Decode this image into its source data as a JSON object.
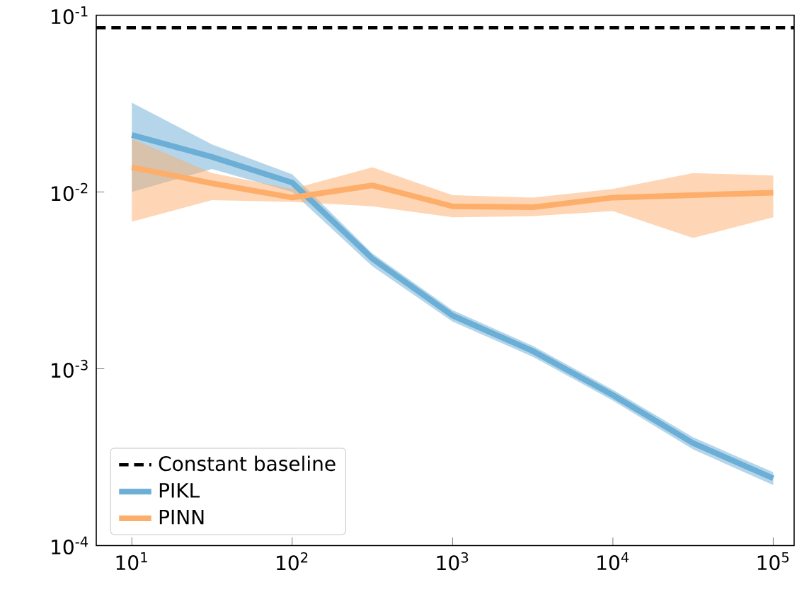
{
  "chart_data": {
    "type": "line",
    "log": "xy",
    "x": [
      10,
      31.6,
      100,
      316,
      1000,
      3162,
      10000,
      31623,
      100000
    ],
    "series": [
      {
        "name": "PIKL",
        "color": "#6baed6",
        "values": [
          0.021,
          0.0158,
          0.0113,
          0.0042,
          0.002,
          0.00126,
          0.00071,
          0.00038,
          0.00024
        ],
        "lower": [
          0.01,
          0.0135,
          0.01,
          0.0038,
          0.00185,
          0.00117,
          0.00066,
          0.00035,
          0.00022
        ],
        "upper": [
          0.032,
          0.0186,
          0.0126,
          0.0045,
          0.00215,
          0.00135,
          0.00076,
          0.00041,
          0.00026
        ]
      },
      {
        "name": "PINN",
        "color": "#fdae6b",
        "values": [
          0.0138,
          0.0112,
          0.0093,
          0.0109,
          0.0083,
          0.0082,
          0.0093,
          0.0096,
          0.0099
        ],
        "lower": [
          0.0068,
          0.009,
          0.0088,
          0.0083,
          0.0072,
          0.0073,
          0.0078,
          0.0055,
          0.0072
        ],
        "upper": [
          0.02,
          0.0128,
          0.0104,
          0.0138,
          0.0096,
          0.0093,
          0.0104,
          0.0128,
          0.0124
        ]
      }
    ],
    "ref_lines": [
      {
        "axis": "y",
        "value": 0.085,
        "label": "Constant baseline",
        "color": "#000000",
        "line_style": "dashed"
      }
    ],
    "xlim": [
      6,
      135000
    ],
    "ylim": [
      0.0001,
      0.1
    ],
    "xticks": [
      {
        "value": 10,
        "label": "10$^{1}$"
      },
      {
        "value": 100,
        "label": "10$^{2}$"
      },
      {
        "value": 1000,
        "label": "10$^{3}$"
      },
      {
        "value": 10000,
        "label": "10$^{4}$"
      },
      {
        "value": 100000,
        "label": "10$^{5}$"
      }
    ],
    "yticks": [
      {
        "value": 0.0001,
        "label": "10$^{-4}$"
      },
      {
        "value": 0.001,
        "label": "10$^{-3}$"
      },
      {
        "value": 0.01,
        "label": "10$^{-2}$"
      },
      {
        "value": 0.1,
        "label": "10$^{-1}$"
      }
    ],
    "legend": "bottom left",
    "grid": false,
    "marker": "none",
    "line_style": "solid"
  }
}
